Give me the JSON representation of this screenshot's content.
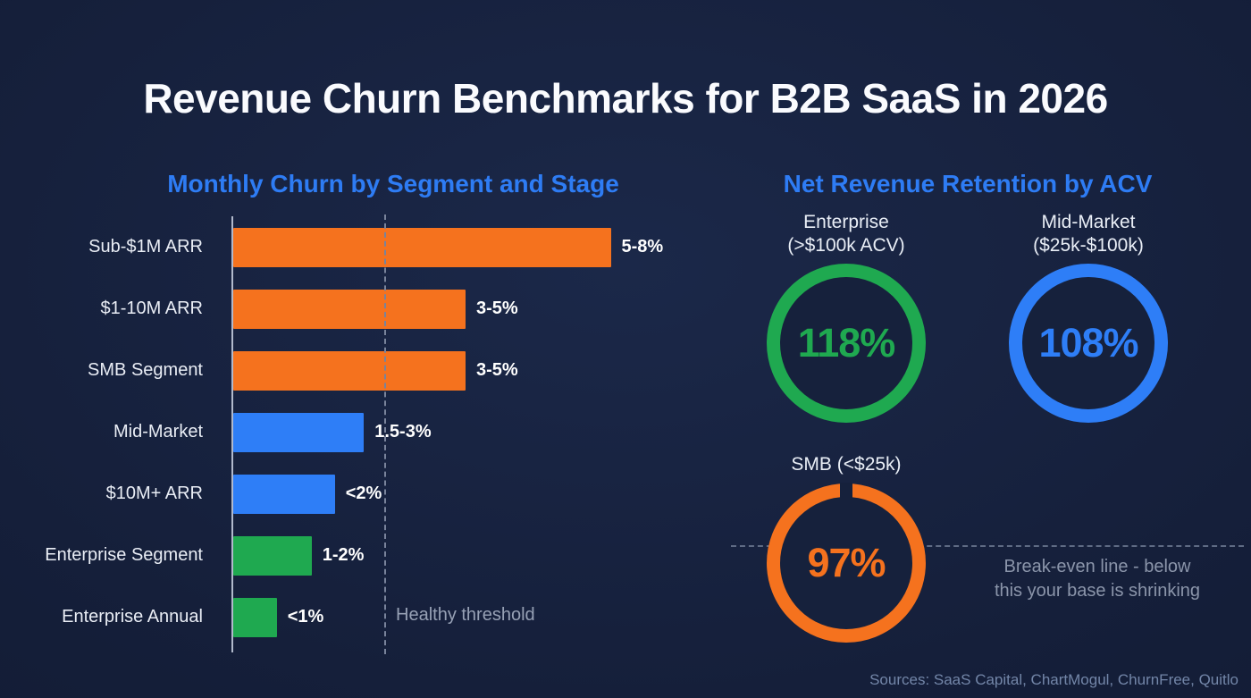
{
  "page": {
    "title": "Revenue Churn Benchmarks for B2B SaaS in 2026",
    "footer": "Sources: SaaS Capital, ChartMogul, ChurnFree, Quitlo",
    "background": "#16213c"
  },
  "colors": {
    "accent_blue": "#2e7cf4",
    "orange": "#f5721e",
    "blue": "#2e7ef7",
    "green": "#1fa950",
    "muted_gray": "#8b95aa",
    "white": "#ffffff"
  },
  "chart_data": [
    {
      "type": "bar",
      "orientation": "horizontal",
      "title": "Monthly Churn by Segment and Stage",
      "unit": "monthly churn %",
      "xlim": [
        0,
        8.5
      ],
      "rows": [
        {
          "category": "Sub-$1M ARR",
          "range": "5-8%",
          "value": 6.5,
          "color": "#f5721e"
        },
        {
          "category": "$1-10M ARR",
          "range": "3-5%",
          "value": 4,
          "color": "#f5721e"
        },
        {
          "category": "SMB Segment",
          "range": "3-5%",
          "value": 4,
          "color": "#f5721e"
        },
        {
          "category": "Mid-Market",
          "range": "1.5-3%",
          "value": 2.25,
          "color": "#2e7ef7"
        },
        {
          "category": "$10M+ ARR",
          "range": "<2%",
          "value": 1.75,
          "color": "#2e7ef7"
        },
        {
          "category": "Enterprise Segment",
          "range": "1-2%",
          "value": 1.35,
          "color": "#1fa950"
        },
        {
          "category": "Enterprise Annual",
          "range": "<1%",
          "value": 0.75,
          "color": "#1fa950"
        }
      ],
      "threshold": {
        "label": "Healthy threshold",
        "value": 2.6
      }
    },
    {
      "type": "donut",
      "title": "Net Revenue Retention by ACV",
      "items": [
        {
          "label": "Enterprise\n(>$100k ACV)",
          "value": "118%",
          "color": "#1fa950"
        },
        {
          "label": "Mid-Market\n($25k-$100k)",
          "value": "108%",
          "color": "#2e7ef7"
        },
        {
          "label": "SMB (<$25k)",
          "value": "97%",
          "color": "#f5721e"
        }
      ],
      "annotation": "Break-even line - below\nthis your base is shrinking"
    }
  ]
}
